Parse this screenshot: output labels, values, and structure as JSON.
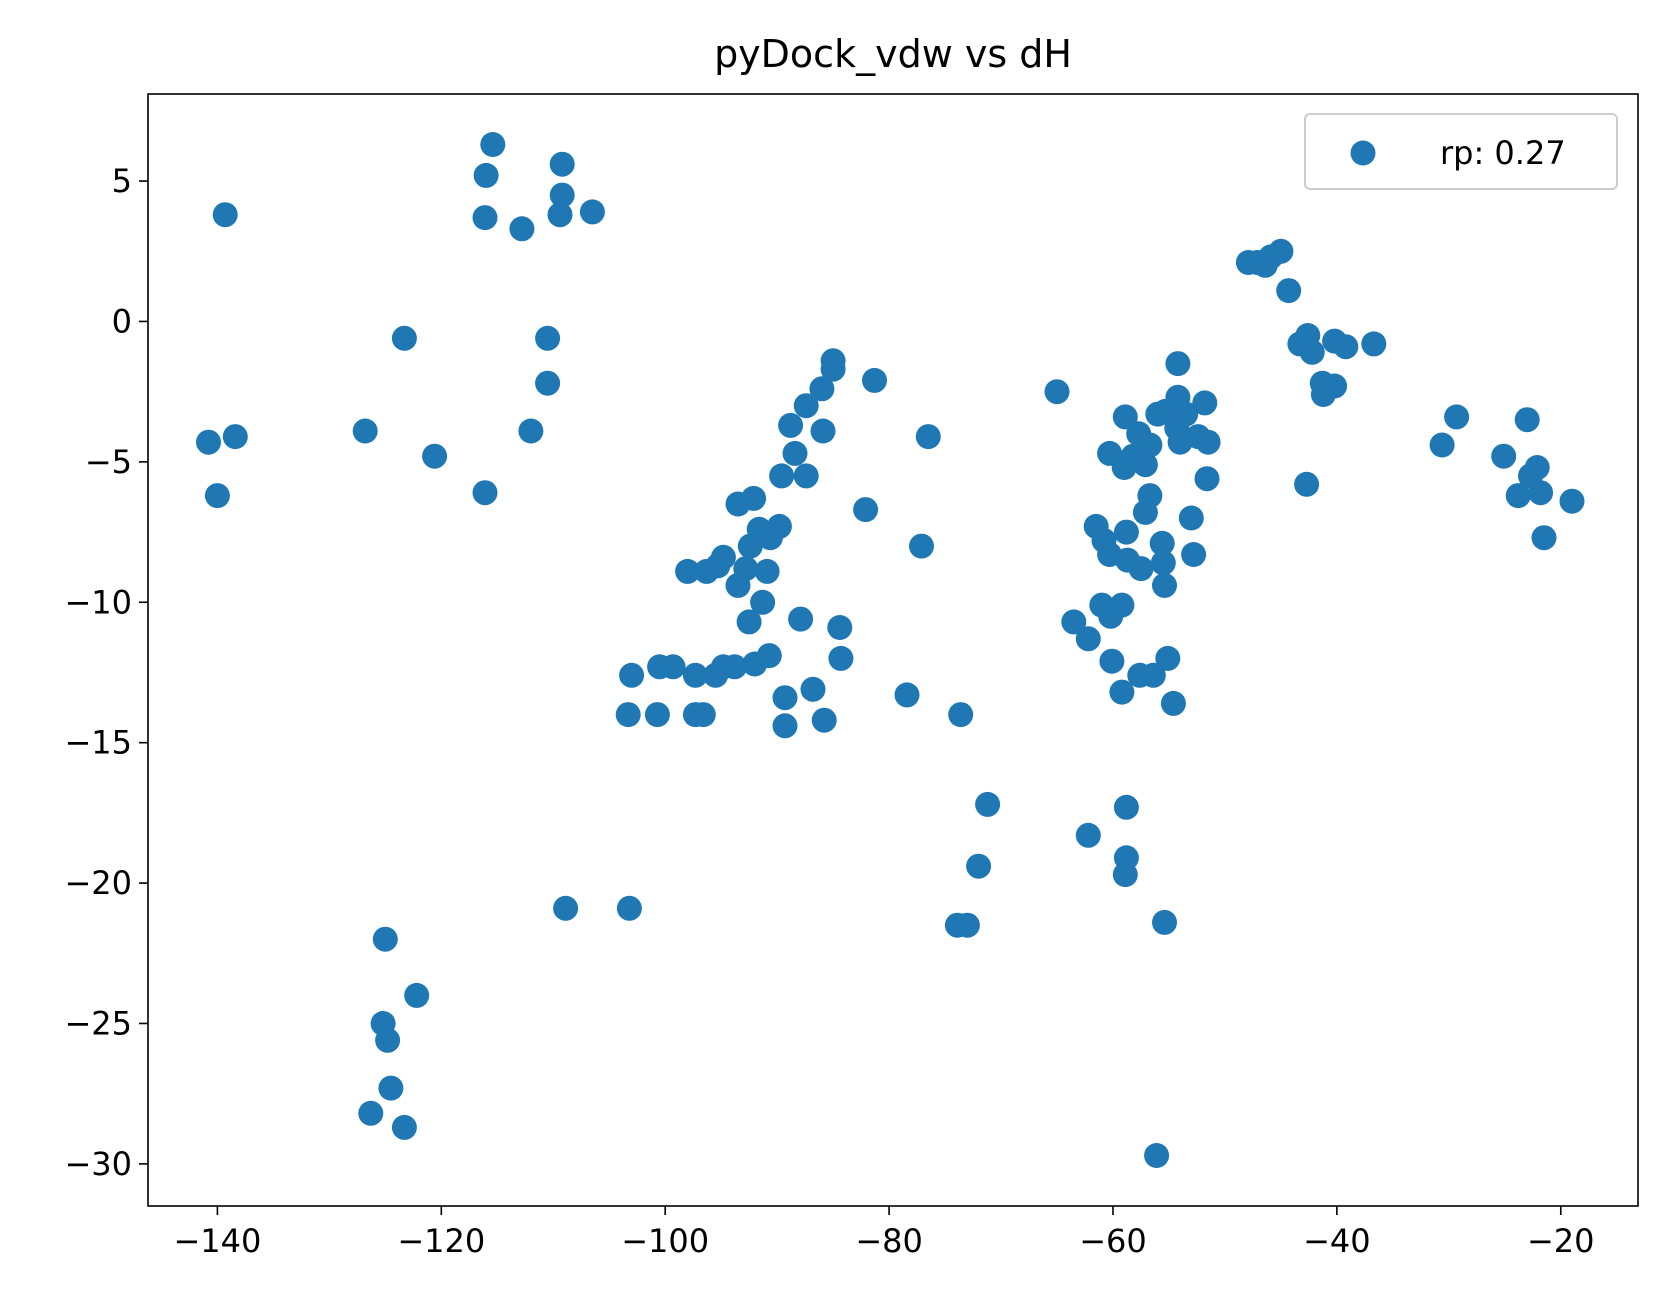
{
  "chart_data": {
    "type": "scatter",
    "title": "pyDock_vdw vs dH",
    "xlabel": "",
    "ylabel": "",
    "xlim": [
      -146.2,
      -13.1
    ],
    "ylim": [
      -31.5,
      8.1
    ],
    "xticks": [
      -140,
      -120,
      -100,
      -80,
      -60,
      -40,
      -20
    ],
    "yticks": [
      5,
      0,
      -5,
      -10,
      -15,
      -20,
      -25,
      -30
    ],
    "xtick_labels": [
      "−140",
      "−120",
      "−100",
      "−80",
      "−60",
      "−40",
      "−20"
    ],
    "ytick_labels": [
      "5",
      "0",
      "−5",
      "−10",
      "−15",
      "−20",
      "−25",
      "−30"
    ],
    "grid": false,
    "legend_position": "top-right",
    "color": "#1f77b4",
    "series": [
      {
        "name": "rp: 0.27",
        "points": [
          [
            -139.3,
            3.8
          ],
          [
            -140.8,
            -4.3
          ],
          [
            -138.4,
            -4.1
          ],
          [
            -140.0,
            -6.2
          ],
          [
            -115.4,
            6.3
          ],
          [
            -116.0,
            5.2
          ],
          [
            -116.1,
            3.7
          ],
          [
            -112.8,
            3.3
          ],
          [
            -109.2,
            5.6
          ],
          [
            -109.2,
            4.5
          ],
          [
            -109.4,
            3.8
          ],
          [
            -106.5,
            3.9
          ],
          [
            -123.3,
            -0.6
          ],
          [
            -110.5,
            -0.6
          ],
          [
            -110.5,
            -2.2
          ],
          [
            -126.8,
            -3.9
          ],
          [
            -120.6,
            -4.8
          ],
          [
            -112.0,
            -3.9
          ],
          [
            -116.1,
            -6.1
          ],
          [
            -125.0,
            -22.0
          ],
          [
            -122.2,
            -24.0
          ],
          [
            -125.2,
            -25.0
          ],
          [
            -124.8,
            -25.6
          ],
          [
            -124.5,
            -27.3
          ],
          [
            -126.3,
            -28.2
          ],
          [
            -123.3,
            -28.7
          ],
          [
            -108.9,
            -20.9
          ],
          [
            -103.2,
            -20.9
          ],
          [
            -103.0,
            -12.6
          ],
          [
            -100.5,
            -12.3
          ],
          [
            -99.3,
            -12.3
          ],
          [
            -103.3,
            -14.0
          ],
          [
            -100.7,
            -14.0
          ],
          [
            -97.3,
            -14.0
          ],
          [
            -96.6,
            -14.0
          ],
          [
            -97.3,
            -12.6
          ],
          [
            -95.5,
            -12.6
          ],
          [
            -94.8,
            -12.3
          ],
          [
            -93.8,
            -12.3
          ],
          [
            -98.0,
            -8.9
          ],
          [
            -96.3,
            -8.9
          ],
          [
            -95.3,
            -8.7
          ],
          [
            -94.8,
            -8.4
          ],
          [
            -92.0,
            -12.2
          ],
          [
            -93.5,
            -9.4
          ],
          [
            -92.8,
            -8.8
          ],
          [
            -92.5,
            -10.7
          ],
          [
            -91.3,
            -10.0
          ],
          [
            -93.5,
            -6.5
          ],
          [
            -92.1,
            -6.3
          ],
          [
            -92.4,
            -8.0
          ],
          [
            -91.6,
            -7.4
          ],
          [
            -90.9,
            -8.9
          ],
          [
            -90.7,
            -11.9
          ],
          [
            -90.6,
            -7.7
          ],
          [
            -89.8,
            -7.3
          ],
          [
            -89.6,
            -5.5
          ],
          [
            -89.3,
            -13.4
          ],
          [
            -89.3,
            -14.4
          ],
          [
            -88.8,
            -3.7
          ],
          [
            -88.4,
            -4.7
          ],
          [
            -87.9,
            -10.6
          ],
          [
            -87.4,
            -5.5
          ],
          [
            -87.4,
            -3.0
          ],
          [
            -86.8,
            -13.1
          ],
          [
            -86.0,
            -2.4
          ],
          [
            -85.9,
            -3.9
          ],
          [
            -85.8,
            -14.2
          ],
          [
            -85.0,
            -1.4
          ],
          [
            -85.0,
            -1.7
          ],
          [
            -84.4,
            -10.9
          ],
          [
            -84.3,
            -12.0
          ],
          [
            -81.3,
            -2.1
          ],
          [
            -82.1,
            -6.7
          ],
          [
            -78.4,
            -13.3
          ],
          [
            -76.5,
            -4.1
          ],
          [
            -77.1,
            -8.0
          ],
          [
            -73.6,
            -14.0
          ],
          [
            -71.2,
            -17.2
          ],
          [
            -72.0,
            -19.4
          ],
          [
            -73.9,
            -21.5
          ],
          [
            -73.0,
            -21.5
          ],
          [
            -65.0,
            -2.5
          ],
          [
            -63.5,
            -10.7
          ],
          [
            -62.2,
            -11.3
          ],
          [
            -62.2,
            -18.3
          ],
          [
            -61.5,
            -7.3
          ],
          [
            -61.0,
            -10.1
          ],
          [
            -60.8,
            -7.8
          ],
          [
            -60.3,
            -4.7
          ],
          [
            -60.3,
            -8.3
          ],
          [
            -60.2,
            -10.5
          ],
          [
            -60.1,
            -12.1
          ],
          [
            -59.2,
            -10.1
          ],
          [
            -59.2,
            -13.2
          ],
          [
            -59.0,
            -5.2
          ],
          [
            -58.9,
            -3.4
          ],
          [
            -58.8,
            -17.3
          ],
          [
            -58.8,
            -19.1
          ],
          [
            -58.9,
            -19.7
          ],
          [
            -58.7,
            -8.5
          ],
          [
            -58.8,
            -7.5
          ],
          [
            -57.7,
            -4.0
          ],
          [
            -58.2,
            -4.8
          ],
          [
            -57.6,
            -12.6
          ],
          [
            -57.5,
            -8.8
          ],
          [
            -57.1,
            -5.1
          ],
          [
            -57.1,
            -6.8
          ],
          [
            -56.7,
            -6.2
          ],
          [
            -56.7,
            -4.4
          ],
          [
            -56.4,
            -12.6
          ],
          [
            -56.0,
            -3.3
          ],
          [
            -56.1,
            -29.7
          ],
          [
            -55.3,
            -3.2
          ],
          [
            -55.6,
            -7.9
          ],
          [
            -55.5,
            -8.6
          ],
          [
            -55.4,
            -9.4
          ],
          [
            -55.4,
            -21.4
          ],
          [
            -55.1,
            -12.0
          ],
          [
            -54.6,
            -13.6
          ],
          [
            -54.2,
            -1.5
          ],
          [
            -54.2,
            -2.7
          ],
          [
            -54.3,
            -3.8
          ],
          [
            -54.0,
            -4.3
          ],
          [
            -53.5,
            -3.3
          ],
          [
            -53.0,
            -7.0
          ],
          [
            -52.8,
            -8.3
          ],
          [
            -52.4,
            -4.1
          ],
          [
            -51.8,
            -2.9
          ],
          [
            -51.5,
            -4.3
          ],
          [
            -51.6,
            -5.6
          ],
          [
            -47.9,
            2.1
          ],
          [
            -47.1,
            2.1
          ],
          [
            -46.4,
            2.0
          ],
          [
            -45.9,
            2.3
          ],
          [
            -45.0,
            2.5
          ],
          [
            -44.3,
            1.1
          ],
          [
            -43.3,
            -0.8
          ],
          [
            -42.6,
            -0.5
          ],
          [
            -42.2,
            -1.1
          ],
          [
            -42.7,
            -5.8
          ],
          [
            -41.3,
            -2.2
          ],
          [
            -41.2,
            -2.6
          ],
          [
            -40.2,
            -0.7
          ],
          [
            -40.2,
            -2.3
          ],
          [
            -39.2,
            -0.9
          ],
          [
            -36.7,
            -0.8
          ],
          [
            -30.6,
            -4.4
          ],
          [
            -29.3,
            -3.4
          ],
          [
            -25.1,
            -4.8
          ],
          [
            -23.8,
            -6.2
          ],
          [
            -23.0,
            -3.5
          ],
          [
            -22.7,
            -5.5
          ],
          [
            -22.1,
            -5.2
          ],
          [
            -21.8,
            -6.1
          ],
          [
            -21.5,
            -7.7
          ],
          [
            -19.0,
            -6.4
          ]
        ]
      }
    ]
  }
}
